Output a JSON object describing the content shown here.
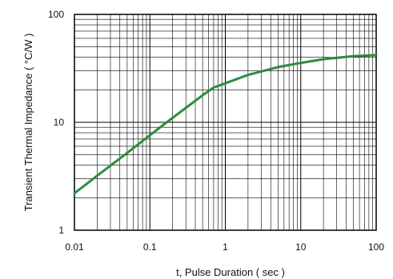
{
  "chart_data": {
    "type": "line",
    "title": "",
    "xlabel": "t, Pulse Duration ( sec )",
    "ylabel": "Transient Thermal Impedance ( °C/W )",
    "x_scale": "log",
    "y_scale": "log",
    "xlim": [
      0.01,
      100
    ],
    "ylim": [
      1,
      100
    ],
    "x_ticks": [
      "0.01",
      "0.1",
      "1",
      "10",
      "100"
    ],
    "y_ticks": [
      "1",
      "10",
      "100"
    ],
    "grid": true,
    "colors": {
      "line": "#2e8b3e",
      "grid": "#000000",
      "frame": "#000000"
    },
    "series": [
      {
        "x": [
          0.01,
          0.02,
          0.05,
          0.1,
          0.2,
          0.5,
          0.7,
          1,
          2,
          5,
          10,
          20,
          50,
          100
        ],
        "y": [
          2.2,
          3.2,
          5.2,
          7.6,
          11.0,
          17.8,
          21.0,
          23.0,
          27.5,
          32.5,
          35.5,
          38.5,
          41.0,
          42.0
        ]
      }
    ]
  }
}
